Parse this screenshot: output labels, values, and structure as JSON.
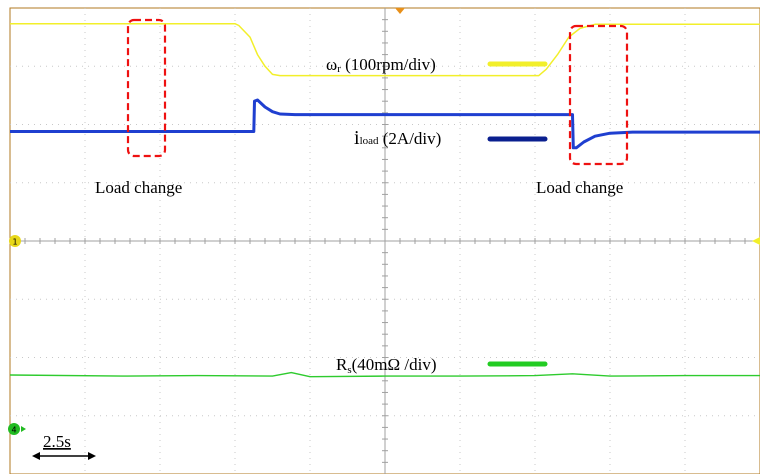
{
  "chart_data": {
    "type": "line",
    "title": "",
    "grid": true,
    "x_divisions": 10,
    "y_divisions": 8,
    "time_scale": "2.5s",
    "xlim": [
      0,
      10
    ],
    "ylim": [
      0,
      8
    ],
    "series": [
      {
        "name": "ωr",
        "scale": "(100rpm/div)",
        "color": "#f2ef2a",
        "x": [
          0,
          3.0,
          3.05,
          3.2,
          3.3,
          3.4,
          3.5,
          3.6,
          7.05,
          7.15,
          7.3,
          7.45,
          7.6,
          7.8,
          10
        ],
        "y": [
          7.73,
          7.73,
          7.7,
          7.5,
          7.2,
          7.0,
          6.86,
          6.84,
          6.84,
          6.95,
          7.2,
          7.5,
          7.65,
          7.72,
          7.72
        ]
      },
      {
        "name": "iload",
        "scale": "(2A/div)",
        "color": "#1f3fd0",
        "x": [
          0,
          3.25,
          3.26,
          3.3,
          3.4,
          3.5,
          3.6,
          3.8,
          7.5,
          7.51,
          7.55,
          7.65,
          7.8,
          8.0,
          8.3,
          10
        ],
        "y": [
          5.88,
          5.88,
          6.4,
          6.42,
          6.3,
          6.22,
          6.18,
          6.17,
          6.17,
          5.6,
          5.6,
          5.7,
          5.8,
          5.85,
          5.87,
          5.87
        ]
      },
      {
        "name": "Rs",
        "scale": "(40mΩ /div)",
        "color": "#2ecb2e",
        "x": [
          0,
          1.5,
          2.5,
          3.5,
          3.75,
          4.0,
          5.0,
          6.0,
          7.0,
          7.5,
          8.0,
          9.0,
          10
        ],
        "y": [
          1.7,
          1.68,
          1.69,
          1.68,
          1.74,
          1.67,
          1.68,
          1.68,
          1.69,
          1.72,
          1.68,
          1.69,
          1.69
        ]
      }
    ],
    "legend": [
      {
        "label_main": "ω",
        "label_sub": "r",
        "label_scale": " (100rpm/div)",
        "color": "#f2ef2a"
      },
      {
        "label_main": "i",
        "label_sub": "load",
        "label_scale": " (2A/div)",
        "color": "#0a1f8f"
      },
      {
        "label_main": "R",
        "label_sub": "s",
        "label_scale": "(40mΩ /div)",
        "color": "#22cc22"
      }
    ],
    "annotations": [
      {
        "text": "Load change"
      },
      {
        "text": "Load change"
      }
    ],
    "channel_markers": [
      "1",
      "4"
    ]
  }
}
